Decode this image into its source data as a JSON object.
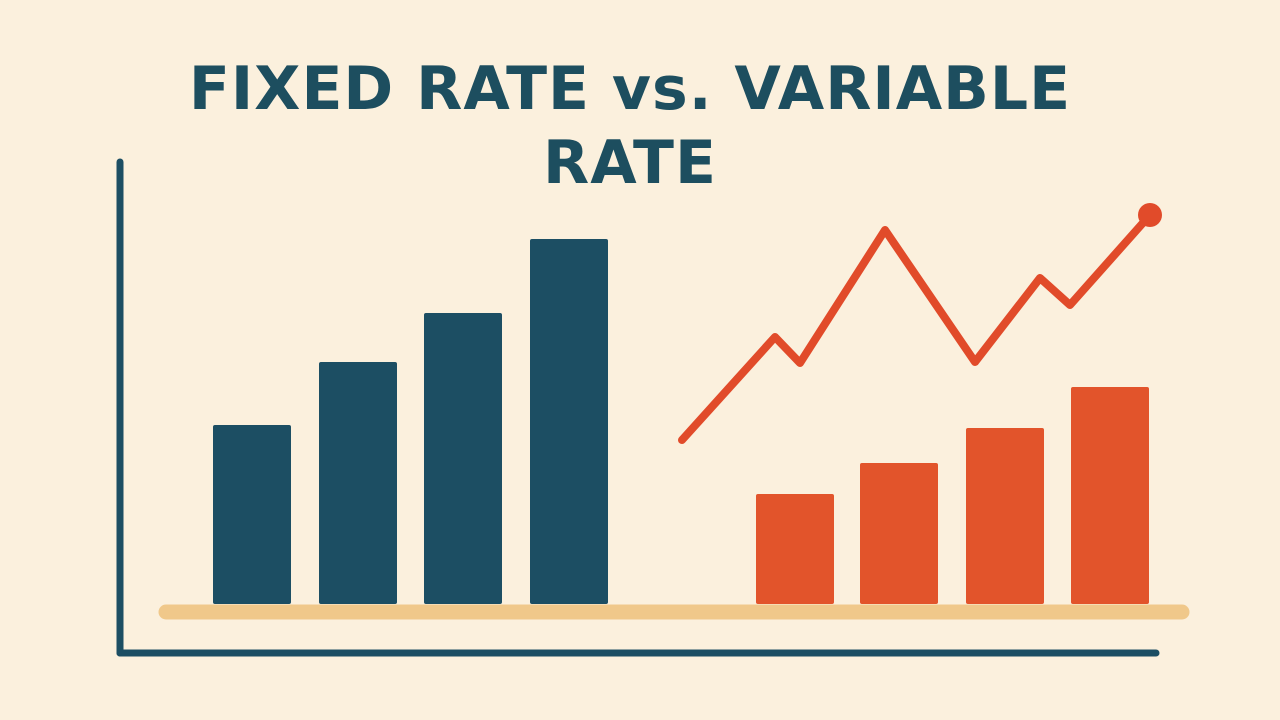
{
  "chart_data": {
    "type": "bar",
    "title": "FIXED RATE vs. VARIABLE RATE",
    "xlim": [
      0,
      1040
    ],
    "ylim": [
      0,
      400
    ],
    "series": [
      {
        "type": "bar",
        "color": "#1c4e63",
        "x": [
          132,
          238,
          343,
          449
        ],
        "values": [
          179,
          242,
          291,
          365
        ]
      },
      {
        "type": "bar",
        "color": "#e2542b",
        "x": [
          675,
          779,
          885,
          990
        ],
        "values": [
          110,
          141,
          176,
          217
        ]
      },
      {
        "type": "line",
        "color": "#e14b2a",
        "x": [
          562,
          655,
          680,
          765,
          855,
          920,
          950,
          1030
        ],
        "values": [
          164,
          267,
          241,
          374,
          242,
          326,
          299,
          389
        ]
      }
    ]
  }
}
